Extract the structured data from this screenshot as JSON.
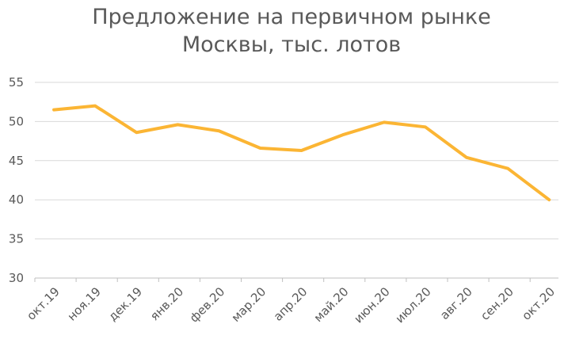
{
  "chart_data": {
    "type": "line",
    "title": [
      "Предложение на первичном рынке",
      "Москвы, тыс. лотов"
    ],
    "categories": [
      "окт.19",
      "ноя.19",
      "дек.19",
      "янв.20",
      "фев.20",
      "мар.20",
      "апр.20",
      "май.20",
      "июн.20",
      "июл.20",
      "авг.20",
      "сен.20",
      "окт.20"
    ],
    "values": [
      51.5,
      52.0,
      48.6,
      49.6,
      48.8,
      46.6,
      46.3,
      48.3,
      49.9,
      49.3,
      45.4,
      44.0,
      40.0
    ],
    "color": "#fbb534",
    "ylim": [
      30,
      55
    ],
    "yticks": [
      30,
      35,
      40,
      45,
      50,
      55
    ],
    "grid": true
  }
}
